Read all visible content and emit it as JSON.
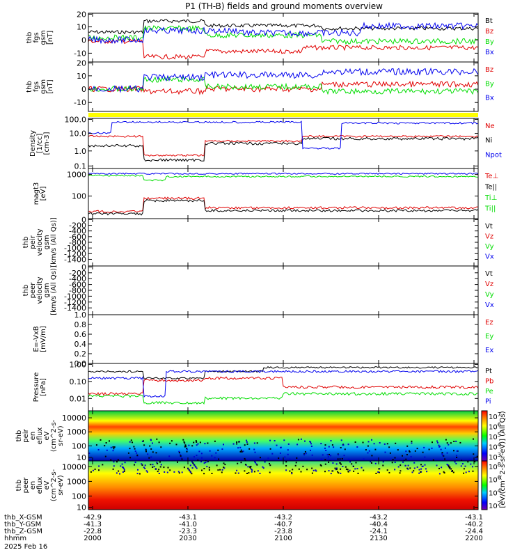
{
  "title": "P1 (TH-B) fields and ground moments overview",
  "colors": {
    "black": "#000000",
    "red": "#e00000",
    "green": "#00dd00",
    "blue": "#0000ee",
    "yellow": "#ffff00"
  },
  "panels": [
    {
      "id": "fgs_total",
      "ylabel": [
        "thb",
        "fgs",
        "gsm",
        "[nT]"
      ],
      "ticks": [
        "20",
        "10",
        "0",
        "-10"
      ],
      "legend": [
        {
          "text": "Bt",
          "color": "#000000"
        },
        {
          "text": "Bz",
          "color": "#e00000"
        },
        {
          "text": "By",
          "color": "#00dd00"
        },
        {
          "text": "Bx",
          "color": "#0000ee"
        }
      ]
    },
    {
      "id": "fgs",
      "ylabel": [
        "thb",
        "fgs",
        "gsm",
        "[nT]"
      ],
      "ticks": [
        "20",
        "10",
        "0",
        "-10"
      ],
      "legend": [
        {
          "text": "Bz",
          "color": "#e00000"
        },
        {
          "text": "By",
          "color": "#00dd00"
        },
        {
          "text": "Bx",
          "color": "#0000ee"
        }
      ]
    },
    {
      "id": "density",
      "ylabel": [
        "Density",
        "[1/cc]",
        "[cm-3]"
      ],
      "ticks": [
        "100.0",
        "10.0",
        "1.0",
        "0.1"
      ],
      "legend": [
        {
          "text": "Ne",
          "color": "#e00000"
        },
        {
          "text": "Ni",
          "color": "#000000"
        },
        {
          "text": "Npot",
          "color": "#0000ee"
        }
      ]
    },
    {
      "id": "temperature",
      "ylabel": [
        "magt3",
        "[eV]"
      ],
      "ticks": [
        "1000",
        "100"
      ],
      "legend": [
        {
          "text": "Te⊥",
          "color": "#e00000"
        },
        {
          "text": "Te||",
          "color": "#000000"
        },
        {
          "text": "Ti⊥",
          "color": "#00dd00"
        },
        {
          "text": "Ti||",
          "color": "#00dd00"
        }
      ]
    },
    {
      "id": "peir_velocity",
      "ylabel": [
        "thb",
        "peir",
        "velocity",
        "gsm",
        "[km/s (All Qs)]"
      ],
      "ticks": [
        "0",
        "-200",
        "-400",
        "-600",
        "-800",
        "-1000",
        "-1200",
        "-1400"
      ],
      "legend": [
        {
          "text": "Vt",
          "color": "#000000"
        },
        {
          "text": "Vz",
          "color": "#e00000"
        },
        {
          "text": "Vy",
          "color": "#00dd00"
        },
        {
          "text": "Vx",
          "color": "#0000ee"
        }
      ]
    },
    {
      "id": "peer_velocity",
      "ylabel": [
        "thb",
        "peer",
        "velocity",
        "gsm",
        "[km/s (All Qs)]"
      ],
      "ticks": [
        "0",
        "-200",
        "-400",
        "-600",
        "-800",
        "-1000",
        "-1200",
        "-1400"
      ],
      "legend": [
        {
          "text": "Vt",
          "color": "#000000"
        },
        {
          "text": "Vz",
          "color": "#e00000"
        },
        {
          "text": "Vy",
          "color": "#00dd00"
        },
        {
          "text": "Vx",
          "color": "#0000ee"
        }
      ]
    },
    {
      "id": "efield",
      "ylabel": [
        "E=-VxB",
        "[mV/m]"
      ],
      "ticks": [
        "1.0",
        "0.8",
        "0.6",
        "0.4",
        "0.2",
        "0.0"
      ],
      "legend": [
        {
          "text": "Ez",
          "color": "#e00000"
        },
        {
          "text": "Ey",
          "color": "#00dd00"
        },
        {
          "text": "Ex",
          "color": "#0000ee"
        }
      ]
    },
    {
      "id": "pressure",
      "ylabel": [
        "Pressure",
        "[nPa]"
      ],
      "ticks": [
        "1.00",
        "0.10",
        "0.01"
      ],
      "legend": [
        {
          "text": "Pt",
          "color": "#000000"
        },
        {
          "text": "Pb",
          "color": "#e00000"
        },
        {
          "text": "Pe",
          "color": "#00dd00"
        },
        {
          "text": "Pi",
          "color": "#0000ee"
        }
      ]
    },
    {
      "id": "peir_spec",
      "ylabel": [
        "thb",
        "peir",
        "en",
        "eflux",
        "eV",
        "(cm^2-s-",
        "sr-eV)"
      ],
      "ticks": [
        "10000",
        "1000",
        "100",
        "10"
      ],
      "colorbar_ticks": [
        "10^7",
        "10^6",
        "10^5",
        "10^4",
        "10^3"
      ]
    },
    {
      "id": "peer_spec",
      "ylabel": [
        "thb",
        "peer",
        "en",
        "eflux",
        "eV",
        "(cm^2-s-",
        "sr-eV)"
      ],
      "ticks": [
        "10000",
        "1000",
        "100",
        "10"
      ],
      "colorbar_ticks": [
        "10^8",
        "10^6",
        "10^4",
        "10^2"
      ]
    }
  ],
  "colorbar_label": "[eV/(cm^2-s-sr-eV)] (All Qs)",
  "xaxis": {
    "rows": [
      {
        "label": "thb_X-GSM",
        "values": [
          "-42.9",
          "-43.1",
          "-43.2",
          "-43.2",
          "-43.1"
        ]
      },
      {
        "label": "thb_Y-GSM",
        "values": [
          "-41.3",
          "-41.0",
          "-40.7",
          "-40.4",
          "-40.2"
        ]
      },
      {
        "label": "thb_Z-GSM",
        "values": [
          "-22.8",
          "-23.3",
          "-23.8",
          "-24.1",
          "-24.4"
        ]
      },
      {
        "label": "hhmm",
        "values": [
          "2000",
          "2030",
          "2100",
          "2130",
          "2200"
        ]
      }
    ],
    "date": "2025 Feb 16"
  },
  "chart_data": {
    "type": "line",
    "title": "P1 (TH-B) fields and ground moments overview",
    "x": [
      "2000",
      "2030",
      "2100",
      "2130",
      "2200"
    ],
    "xlabel": "hhmm",
    "series": [
      {
        "name": "Bt",
        "values": [
          8,
          20,
          15,
          12,
          10
        ]
      },
      {
        "name": "Bz",
        "values": [
          -3,
          -20,
          -12,
          -8,
          -4
        ]
      },
      {
        "name": "By",
        "values": [
          0,
          15,
          8,
          5,
          0
        ]
      },
      {
        "name": "Bx",
        "values": [
          -3,
          10,
          6,
          10,
          12
        ]
      },
      {
        "name": "Ni",
        "values": [
          2.0,
          0.3,
          3.0,
          5.0,
          6.0
        ]
      },
      {
        "name": "Pt",
        "values": [
          0.3,
          0.15,
          0.6,
          0.8,
          0.9
        ]
      }
    ]
  }
}
